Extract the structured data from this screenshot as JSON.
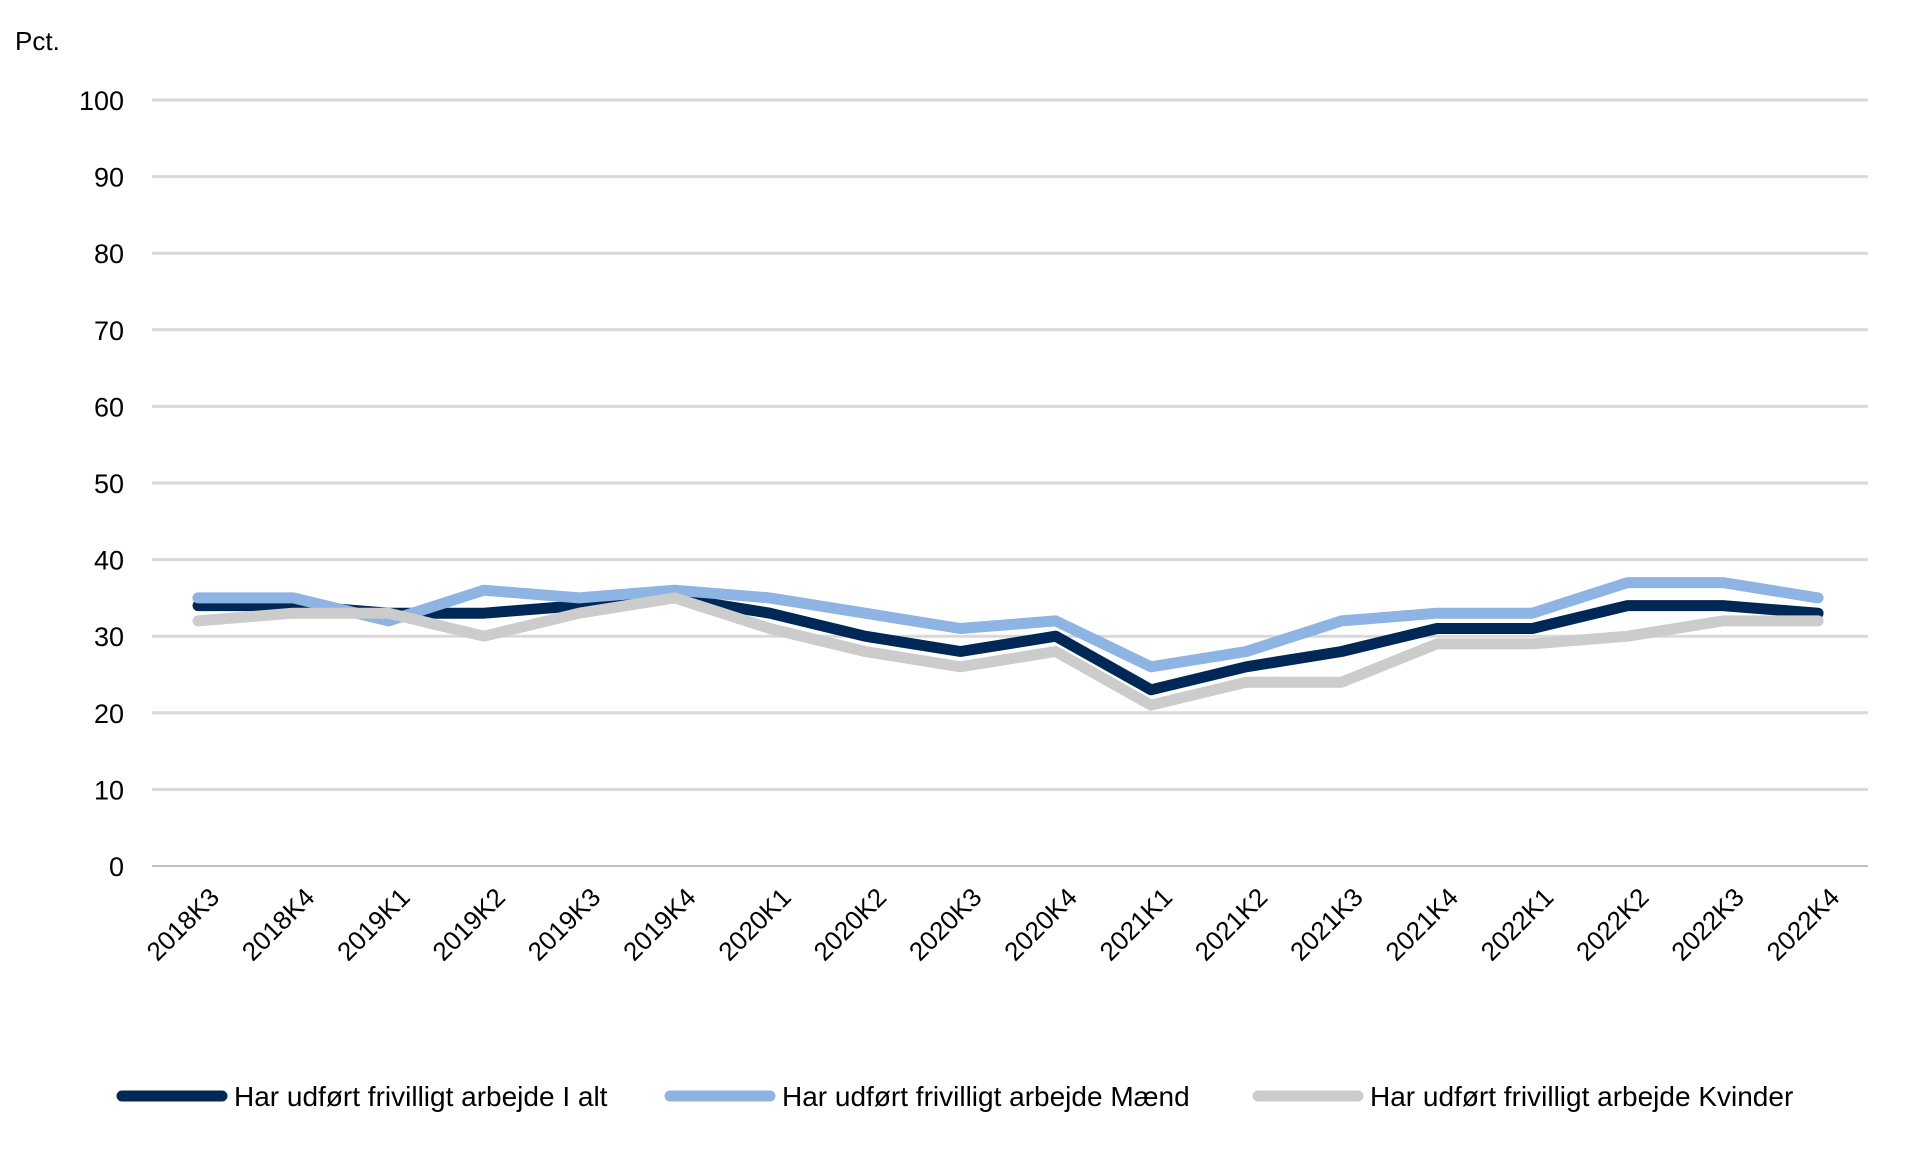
{
  "chart_data": {
    "type": "line",
    "title": "",
    "unit_label": "Pct.",
    "xlabel": "",
    "ylabel": "",
    "categories": [
      "2018K3",
      "2018K4",
      "2019K1",
      "2019K2",
      "2019K3",
      "2019K4",
      "2020K1",
      "2020K2",
      "2020K3",
      "2020K4",
      "2021K1",
      "2021K2",
      "2021K3",
      "2021K4",
      "2022K1",
      "2022K2",
      "2022K3",
      "2022K4"
    ],
    "ylim": [
      0,
      100
    ],
    "yticks": [
      0,
      10,
      20,
      30,
      40,
      50,
      60,
      70,
      80,
      90,
      100
    ],
    "grid": true,
    "legend_position": "bottom",
    "series": [
      {
        "name": "Har udført frivilligt arbejde I alt",
        "color": "#002856",
        "values": [
          34,
          34,
          33,
          33,
          34,
          35,
          33,
          30,
          28,
          30,
          23,
          26,
          28,
          31,
          31,
          34,
          34,
          33
        ]
      },
      {
        "name": "Har udført frivilligt arbejde Mænd",
        "color": "#8db4e2",
        "values": [
          35,
          35,
          32,
          36,
          35,
          36,
          35,
          33,
          31,
          32,
          26,
          28,
          32,
          33,
          33,
          37,
          37,
          35
        ]
      },
      {
        "name": "Har udført frivilligt arbejde Kvinder",
        "color": "#cccccc",
        "values": [
          32,
          33,
          33,
          30,
          33,
          35,
          31,
          28,
          26,
          28,
          21,
          24,
          24,
          29,
          29,
          30,
          32,
          32
        ]
      }
    ]
  }
}
